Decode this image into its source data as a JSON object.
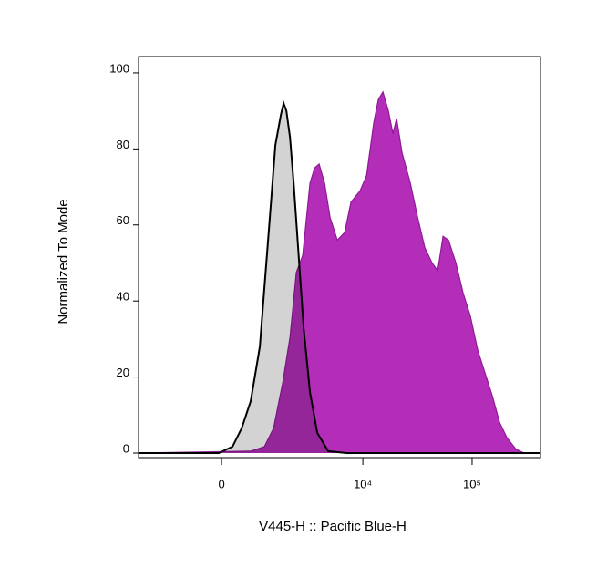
{
  "chart_data": {
    "type": "histogram-overlay",
    "xlabel": "V445-H :: Pacific Blue-H",
    "ylabel": "Normalized To Mode",
    "xscale": "biexponential",
    "xlim": [
      -2850,
      422000
    ],
    "ylim": [
      -1.2,
      104.3
    ],
    "xticks": [
      0,
      {
        "value": 10000,
        "label": "10⁴"
      },
      {
        "value": 100000,
        "label": "10⁵"
      }
    ],
    "yticks": [
      0,
      20,
      40,
      60,
      80,
      100
    ],
    "series": [
      {
        "color": "#b42db9",
        "stroke": "#8e1a96",
        "x": [
          -2850,
          670,
          1055,
          1359,
          1714,
          2045,
          2365,
          2732,
          3212,
          3560,
          3928,
          4424,
          4977,
          5816,
          6789,
          7782,
          9441,
          10813,
          12605,
          13875,
          15278,
          17152,
          18883,
          20378,
          22886,
          27238,
          31744,
          36966,
          43110,
          48435,
          54272,
          60928,
          71066,
          82842,
          96563,
          112640,
          131482,
          153190,
          178586,
          208282,
          251904,
          299008,
          422000
        ],
        "values": [
          0,
          0.5,
          1.7,
          6.5,
          18.5,
          30.5,
          47.5,
          52,
          71,
          75,
          76,
          71,
          62,
          56,
          58,
          66,
          69,
          73,
          87,
          93,
          95,
          90,
          84,
          88,
          79,
          71,
          62,
          54,
          50,
          48,
          57,
          56,
          50,
          42,
          36,
          27,
          21,
          15,
          8,
          4,
          1,
          0,
          0
        ]
      },
      {
        "color": "#d3d3d3",
        "stroke": "#000000",
        "x": [
          -2850,
          -59,
          238,
          446,
          670,
          919,
          1201,
          1425,
          1641,
          1753,
          1874,
          2045,
          2223,
          2463,
          2789,
          3212,
          3773,
          4782,
          7066,
          422000
        ],
        "values": [
          0,
          0,
          1.7,
          6.5,
          13.7,
          28,
          59,
          81,
          89,
          92,
          90,
          83,
          71,
          54,
          33,
          16,
          5.3,
          0.5,
          0,
          0
        ]
      }
    ]
  }
}
